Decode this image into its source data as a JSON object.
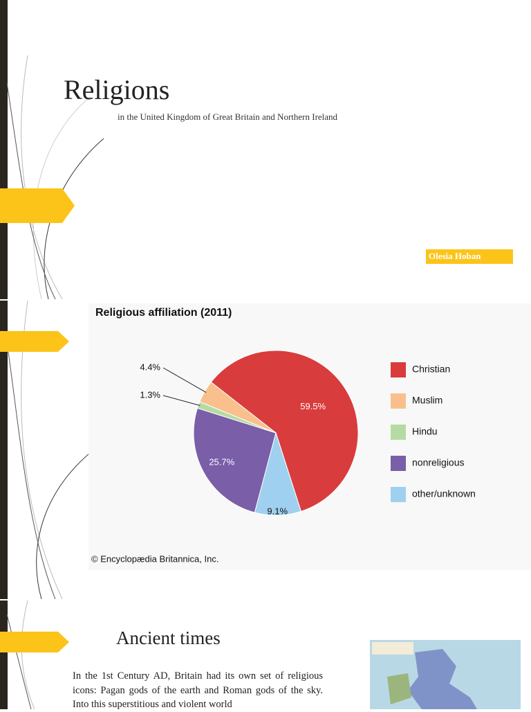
{
  "slide1": {
    "title": "Religions",
    "subtitle": "in the United Kingdom of Great Britain and Northern Ireland",
    "author": "Olesia Hoban"
  },
  "chart_data": {
    "type": "pie",
    "title": "Religious affiliation (2011)",
    "source": "© Encyclopædia Britannica, Inc.",
    "categories": [
      "Christian",
      "other/unknown",
      "nonreligious",
      "Hindu",
      "Muslim"
    ],
    "values": [
      59.5,
      9.1,
      25.7,
      1.3,
      4.4
    ],
    "value_labels": [
      "59.5%",
      "9.1%",
      "25.7%",
      "1.3%",
      "4.4%"
    ],
    "colors": [
      "#d93c3c",
      "#9fd0ef",
      "#7a5ea8",
      "#b6dba2",
      "#f9c08d"
    ],
    "legend_order": [
      0,
      4,
      3,
      2,
      1
    ]
  },
  "slide3": {
    "title": "Ancient times",
    "paragraph": "In the 1st Century AD, Britain had its own set of religious icons: Pagan gods of the earth and Roman gods of the sky. Into this superstitious and violent world"
  }
}
